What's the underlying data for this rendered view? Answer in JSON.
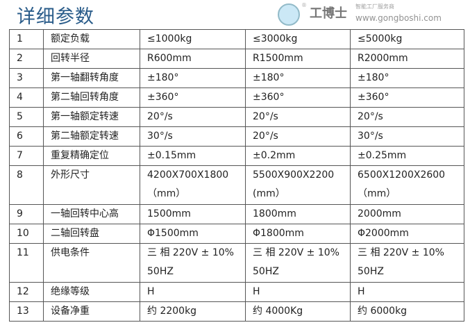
{
  "title": "详细参数",
  "rows": [
    [
      "1",
      "额定负载",
      "≤1000kg",
      "≤3000kg",
      "≤5000kg"
    ],
    [
      "2",
      "回转半径",
      "R600mm",
      "R1500mm",
      "R2000mm"
    ],
    [
      "3",
      "第一轴翻转角度",
      "±180°",
      "±180°",
      "±180°"
    ],
    [
      "4",
      "第二轴回转角度",
      "±360°",
      "±360°",
      "±360°"
    ],
    [
      "5",
      "第一轴额定转速",
      "20°/s",
      "20°/s",
      "20°/s"
    ],
    [
      "6",
      "第二轴额定转速",
      "30°/s",
      "20°/s",
      "30°/s"
    ],
    [
      "7",
      "重复精确定位",
      "±0.15mm",
      "±0.2mm",
      "±0.25mm"
    ],
    [
      "8",
      "外形尺寸",
      "4200X700X1800 （mm）",
      "5500X900X2200 (mm）",
      "6500X1200X2600 （mm）"
    ],
    [
      "9",
      "一轴回转中心高",
      "1500mm",
      "1800mm",
      "2000mm"
    ],
    [
      "10",
      "二轴回转盘",
      "Φ1500mm",
      "Φ1800mm",
      "Φ2000mm"
    ],
    [
      "11",
      "供电条件",
      "三 相 220V ± 10% 50HZ",
      "三 相 220V ± 10% 50HZ",
      "三 相 220V ± 10% 50HZ"
    ],
    [
      "12",
      "绝缘等级",
      "H",
      "H",
      "H"
    ],
    [
      "13",
      "设备净重",
      "约 2200kg",
      "约 4000Kg",
      "约 6000kg"
    ]
  ],
  "watermark": {
    "brand": "工博士",
    "slogan": "智能工厂服务商",
    "url": "www.gongboshi.com",
    "reg": "®"
  }
}
